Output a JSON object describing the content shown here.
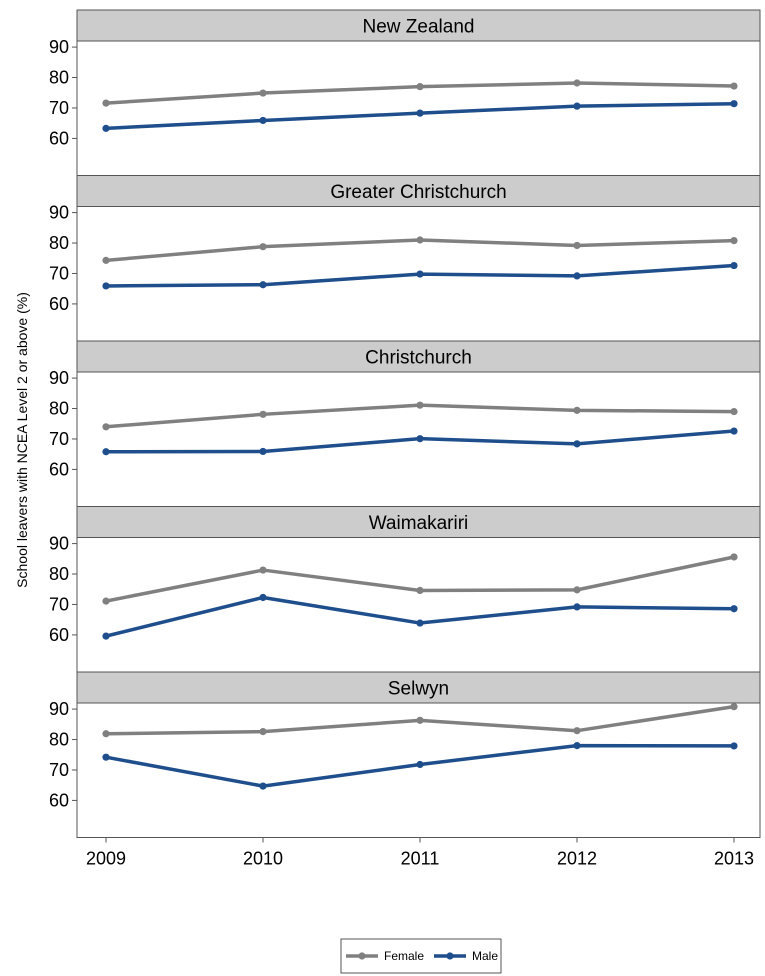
{
  "chart_data": {
    "type": "line",
    "ylabel": "School leavers with NCEA Level 2 or above (%)",
    "xlabel": "",
    "x": [
      2009,
      2010,
      2011,
      2012,
      2013
    ],
    "x_tick_labels": [
      "2009",
      "2010",
      "2011",
      "2012",
      "2013"
    ],
    "ylim": [
      58,
      92
    ],
    "y_ticks": [
      60,
      70,
      80,
      90
    ],
    "y_tick_labels": [
      "60",
      "70",
      "80",
      "90"
    ],
    "grid": false,
    "legend": {
      "position": "bottom",
      "entries": [
        {
          "name": "Female",
          "color": "#808080"
        },
        {
          "name": "Male",
          "color": "#1f4e8c"
        }
      ]
    },
    "panels": [
      {
        "title": "New Zealand",
        "series": [
          {
            "name": "Female",
            "values": [
              71.6,
              74.9,
              77.0,
              78.2,
              77.2
            ]
          },
          {
            "name": "Male",
            "values": [
              63.3,
              65.9,
              68.3,
              70.6,
              71.4
            ]
          }
        ]
      },
      {
        "title": "Greater Christchurch",
        "series": [
          {
            "name": "Female",
            "values": [
              74.3,
              78.8,
              81.0,
              79.2,
              80.8
            ]
          },
          {
            "name": "Male",
            "values": [
              65.9,
              66.3,
              69.8,
              69.2,
              72.6
            ]
          }
        ]
      },
      {
        "title": "Christchurch",
        "series": [
          {
            "name": "Female",
            "values": [
              74.0,
              78.1,
              81.1,
              79.4,
              79.0
            ]
          },
          {
            "name": "Male",
            "values": [
              65.8,
              65.9,
              70.1,
              68.4,
              72.6
            ]
          }
        ]
      },
      {
        "title": "Waimakariri",
        "series": [
          {
            "name": "Female",
            "values": [
              71.1,
              81.3,
              74.6,
              74.8,
              85.6
            ]
          },
          {
            "name": "Male",
            "values": [
              59.6,
              72.3,
              63.9,
              69.2,
              68.6
            ]
          }
        ]
      },
      {
        "title": "Selwyn",
        "series": [
          {
            "name": "Female",
            "values": [
              81.9,
              82.6,
              86.3,
              82.9,
              90.8
            ]
          },
          {
            "name": "Male",
            "values": [
              74.2,
              64.7,
              71.8,
              78.0,
              77.9
            ]
          }
        ]
      }
    ]
  }
}
